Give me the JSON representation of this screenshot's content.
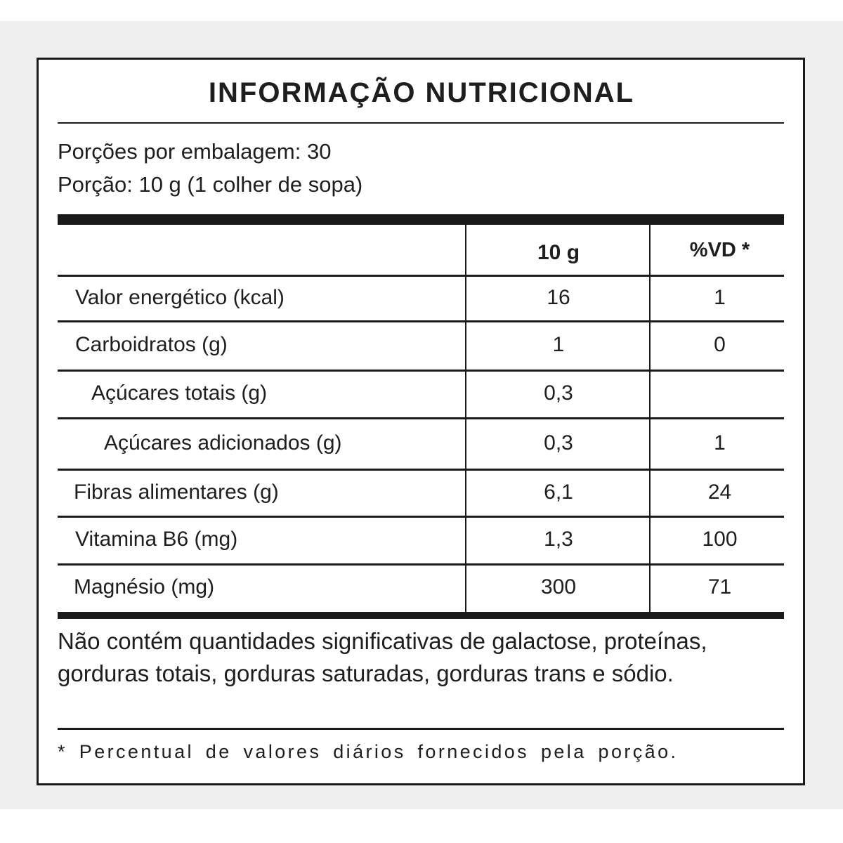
{
  "title": "INFORMAÇÃO NUTRICIONAL",
  "servings_per_package": "Porções por embalagem: 30",
  "serving_size": "Porção: 10 g (1 colher de sopa)",
  "table": {
    "headers": [
      "",
      "10 g",
      "%VD *"
    ],
    "rows": [
      {
        "name": "Valor energético (kcal)",
        "amount": "16",
        "dv": "1"
      },
      {
        "name": "Carboidratos (g)",
        "amount": "1",
        "dv": "0"
      },
      {
        "name": "Açúcares totais (g)",
        "amount": "0,3",
        "dv": ""
      },
      {
        "name": "Açúcares adicionados (g)",
        "amount": "0,3",
        "dv": "1"
      },
      {
        "name": "Fibras alimentares (g)",
        "amount": "6,1",
        "dv": "24"
      },
      {
        "name": "Vitamina B6 (mg)",
        "amount": "1,3",
        "dv": "100"
      },
      {
        "name": "Magnésio (mg)",
        "amount": "300",
        "dv": "71"
      }
    ]
  },
  "disclaimer": "Não contém quantidades significativas de galactose, proteínas, gorduras totais, gorduras saturadas, gorduras trans e sódio.",
  "footnote": "* Percentual de valores diários fornecidos pela porção."
}
